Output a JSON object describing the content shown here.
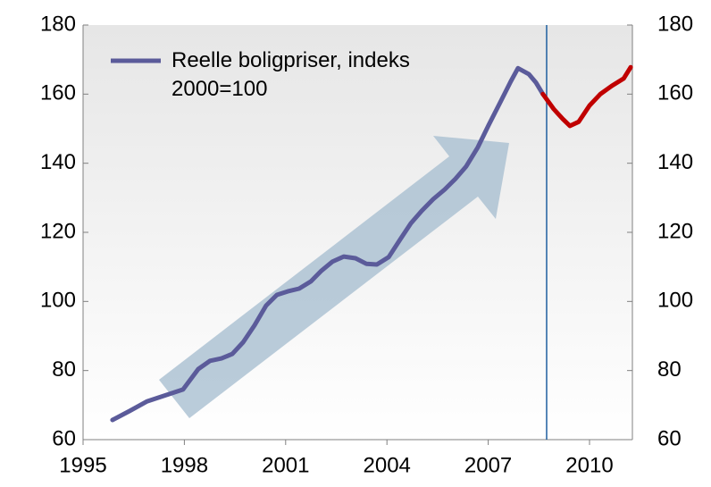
{
  "chart_data": {
    "type": "line",
    "series": [
      {
        "name": "Reelle boligpriser, indeks 2000=100",
        "color": "#5b5b9a",
        "x": [
          1995.87,
          1996.38,
          1996.9,
          1997.3,
          1997.96,
          1998.41,
          1998.76,
          1999.1,
          1999.42,
          1999.74,
          2000.08,
          2000.42,
          2000.74,
          2001.06,
          2001.4,
          2001.75,
          2002.06,
          2002.38,
          2002.72,
          2003.07,
          2003.39,
          2003.7,
          2004.05,
          2004.39,
          2004.71,
          2005.03,
          2005.37,
          2005.71,
          2006.03,
          2006.35,
          2006.69,
          2007.01,
          2007.35,
          2007.67,
          2007.88,
          2008.2,
          2008.41,
          2008.62
        ],
        "values": [
          65.7,
          68.3,
          71.1,
          72.4,
          74.5,
          80.4,
          82.8,
          83.5,
          84.8,
          88.2,
          93.1,
          98.8,
          101.9,
          102.9,
          103.7,
          105.8,
          108.9,
          111.5,
          113,
          112.5,
          110.9,
          110.7,
          112.8,
          117.9,
          122.6,
          126.2,
          129.6,
          132.4,
          135.5,
          139.1,
          144.6,
          151,
          157.5,
          163.7,
          167.5,
          165.8,
          163.4,
          160
        ]
      },
      {
        "color": "#c00000",
        "x": [
          2008.62,
          2008.94,
          2009.21,
          2009.42,
          2009.68,
          2010.0,
          2010.32,
          2010.66,
          2011.01,
          2011.22
        ],
        "values": [
          160,
          155.7,
          152.8,
          150.8,
          152,
          156.7,
          160,
          162.4,
          164.5,
          167.8
        ]
      }
    ],
    "vline": {
      "x": 2008.73,
      "color": "#1f5fa0"
    },
    "xlim": [
      1995,
      2011.27
    ],
    "xticks": [
      1995,
      1998,
      2001,
      2004,
      2007,
      2010
    ],
    "ylim": [
      60,
      180
    ],
    "yticks": [
      60,
      80,
      100,
      120,
      140,
      160,
      180
    ],
    "y2lim": [
      60,
      180
    ],
    "y2ticks": [
      60,
      80,
      100,
      120,
      140,
      160,
      180
    ],
    "legend": "top-left"
  }
}
